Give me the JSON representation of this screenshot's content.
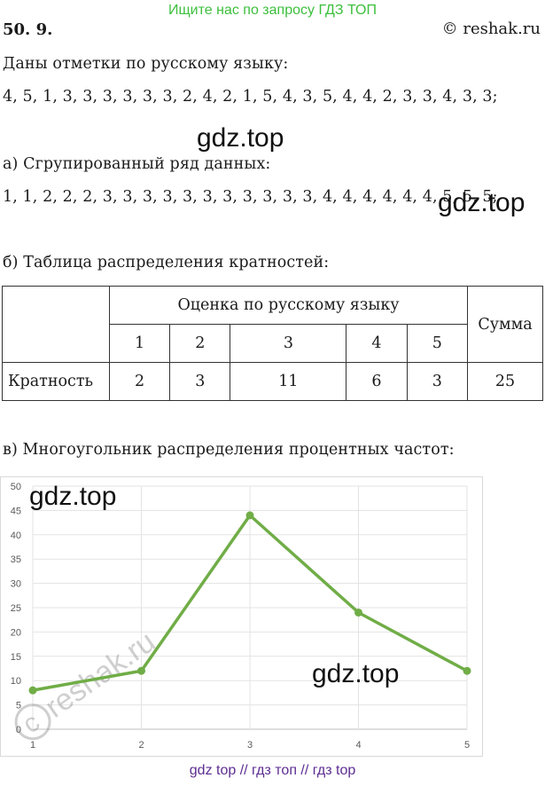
{
  "banner": "Ищите нас по запросу ГДЗ ТОП",
  "header": {
    "number": "50. 9.",
    "copyright": "© reshak.ru"
  },
  "intro": "Даны отметки по русскому языку:",
  "marks": "4, 5, 1, 3, 3, 3, 3, 3, 3, 2, 4, 2, 1, 5, 4, 3, 5, 4, 4, 2, 3, 3, 4, 3, 3;",
  "watermark": "gdz.top",
  "part_a": {
    "title": "а) Сгрупированный ряд данных:",
    "series": "1, 1, 2, 2, 2, 3, 3, 3, 3, 3, 3, 3, 3, 3, 3, 3, 4, 4, 4, 4, 4, 4, 5, 5, 5;"
  },
  "part_b": {
    "title": "б) Таблица распределения кратностей:",
    "table": {
      "group_header": "Оценка по русскому языку",
      "sum_header": "Сумма",
      "grades": [
        "1",
        "2",
        "3",
        "4",
        "5"
      ],
      "row_label": "Кратность",
      "counts": [
        "2",
        "3",
        "11",
        "6",
        "3"
      ],
      "total": "25"
    }
  },
  "part_c": {
    "title": "в) Многоугольник распределения процентных частот:"
  },
  "chart_data": {
    "type": "line",
    "x": [
      1,
      2,
      3,
      4,
      5
    ],
    "series": [
      {
        "values": [
          8,
          12,
          44,
          24,
          12
        ],
        "color": "#70ad47"
      }
    ],
    "x_ticks": [
      "1",
      "2",
      "3",
      "4",
      "5"
    ],
    "y_ticks": [
      "0",
      "5",
      "10",
      "15",
      "20",
      "25",
      "30",
      "35",
      "40",
      "45",
      "50"
    ],
    "ylim": [
      0,
      50
    ],
    "grid": true
  },
  "reshak_watermark": "reshak.ru",
  "footer": "gdz top  //  гдз топ  //  гдз top"
}
